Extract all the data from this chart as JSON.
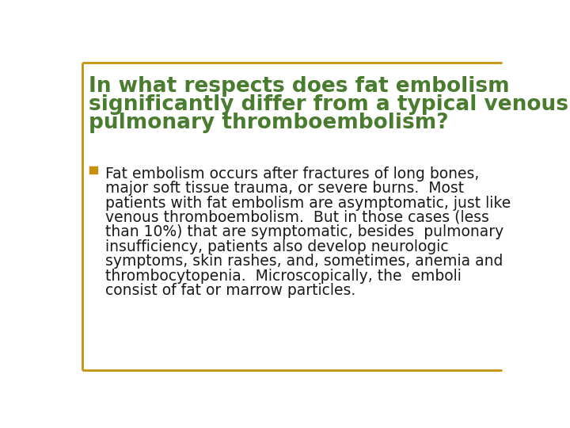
{
  "title_line1": "In what respects does fat embolism",
  "title_line2": "significantly differ from a typical venous",
  "title_line3": "pulmonary thromboembolism?",
  "title_color": "#4a7c2f",
  "bullet_marker_color": "#c8900a",
  "body_text_color": "#1a1a1a",
  "background_color": "#ffffff",
  "border_color": "#c8900a",
  "bullet_lines": [
    "Fat embolism occurs after fractures of long bones,",
    "major soft tissue trauma, or severe burns.  Most",
    "patients with fat embolism are asymptomatic, just like",
    "venous thromboembolism.  But in those cases (less",
    "than 10%) that are symptomatic, besides  pulmonary",
    "insufficiency, patients also develop neurologic",
    "symptoms, skin rashes, and, sometimes, anemia and",
    "thrombocytopenia.  Microscopically, the  emboli",
    "consist of fat or marrow particles."
  ],
  "title_fontsize": 19,
  "body_fontsize": 13.5,
  "figwidth": 7.2,
  "figheight": 5.4,
  "dpi": 100
}
